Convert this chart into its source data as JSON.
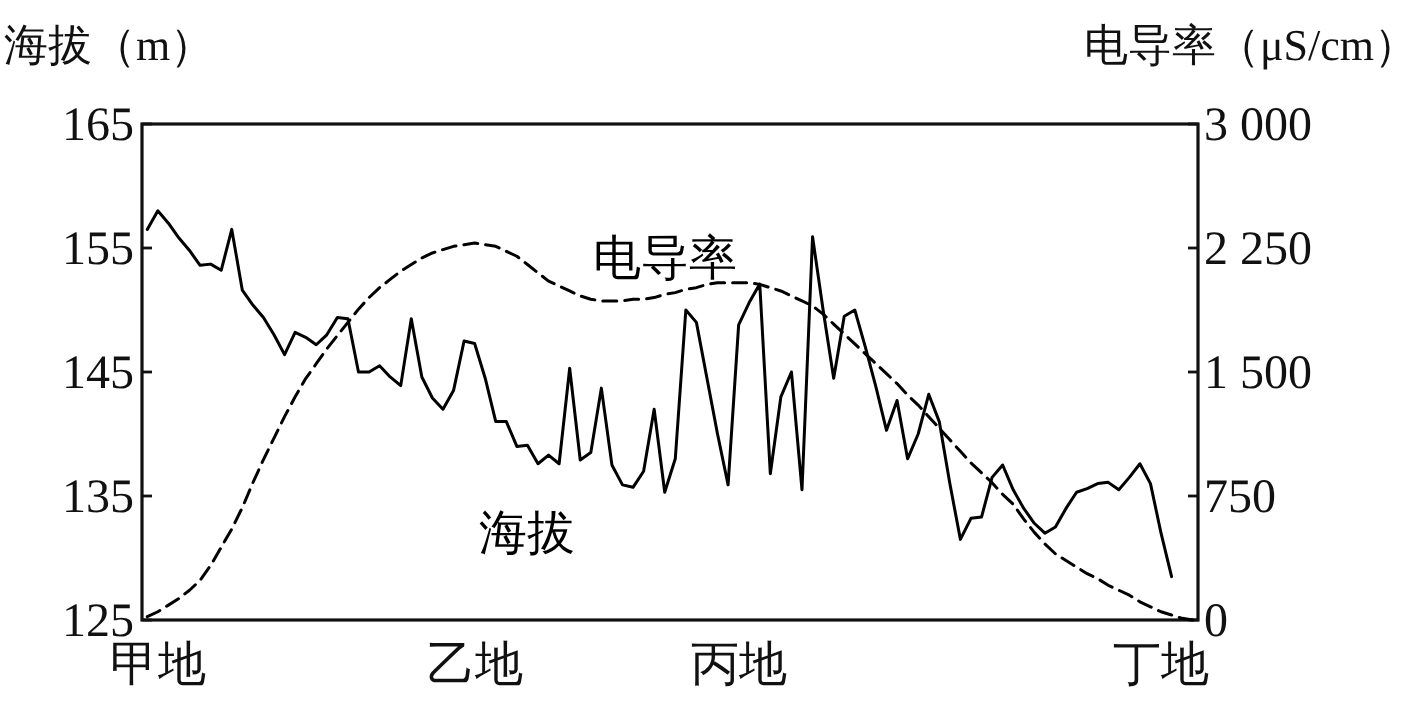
{
  "chart_data": {
    "type": "line",
    "ylabel": "海拔（m）",
    "y2label": "电导率（μS/cm）",
    "categories": [
      null,
      "甲地",
      null,
      null,
      null,
      null,
      null,
      null,
      null,
      null,
      null,
      null,
      null,
      null,
      null,
      null,
      null,
      null,
      null,
      null,
      null,
      null,
      null,
      null,
      null,
      null,
      null,
      null,
      null,
      null,
      null,
      "乙地",
      null,
      null,
      null,
      null,
      null,
      null,
      null,
      null,
      null,
      null,
      null,
      null,
      null,
      null,
      null,
      null,
      null,
      null,
      null,
      null,
      null,
      null,
      null,
      null,
      "丙地",
      null,
      null,
      null,
      null,
      null,
      null,
      null,
      null,
      null,
      null,
      null,
      null,
      null,
      null,
      null,
      null,
      null,
      null,
      null,
      null,
      null,
      null,
      null,
      null,
      null,
      null,
      null,
      null,
      null,
      null,
      null,
      null,
      null,
      null,
      null,
      null,
      null,
      null,
      null,
      "丁地",
      null,
      null,
      null
    ],
    "ylim": [
      125,
      165
    ],
    "yticks": [
      125,
      135,
      145,
      155,
      165
    ],
    "y2lim": [
      0,
      3000
    ],
    "y2ticks": [
      0,
      750,
      {
        "value": 1500,
        "label": "1 500"
      },
      {
        "value": 2250,
        "label": "2 250"
      },
      {
        "value": 3000,
        "label": "3 000"
      }
    ],
    "series": [
      {
        "name": "海拔",
        "color": "#000000",
        "line_style": "solid",
        "axis": "y",
        "values": [
          156.5,
          158.0,
          157.0,
          155.8,
          154.8,
          153.6,
          153.7,
          153.2,
          156.5,
          151.6,
          150.4,
          149.4,
          148.0,
          146.4,
          148.2,
          147.8,
          147.2,
          148.0,
          149.4,
          149.3,
          145.0,
          145.0,
          145.5,
          144.6,
          143.9,
          149.3,
          144.6,
          142.9,
          142.0,
          143.5,
          147.5,
          147.3,
          144.5,
          141.0,
          141.0,
          139.0,
          139.1,
          137.6,
          138.3,
          137.6,
          145.3,
          137.9,
          138.5,
          143.7,
          137.5,
          135.9,
          135.7,
          137.0,
          142.0,
          135.3,
          138.0,
          150.0,
          149.0,
          144.5,
          140.0,
          135.9,
          148.8,
          150.6,
          152.1,
          136.8,
          143.0,
          145.0,
          135.5,
          155.9,
          150.0,
          144.5,
          149.5,
          150.0,
          147.0,
          143.8,
          140.3,
          142.7,
          138.0,
          140.0,
          143.2,
          141.0,
          136.0,
          131.5,
          133.2,
          133.3,
          136.5,
          137.5,
          135.5,
          134.0,
          132.8,
          132.0,
          132.5,
          134.0,
          135.3,
          135.6,
          136.0,
          136.1,
          135.5,
          136.5,
          137.6,
          136.0,
          132.0,
          128.5,
          null,
          null
        ]
      },
      {
        "name": "电导率",
        "color": "#000000",
        "line_style": "dashed",
        "axis": "y2",
        "values": [
          20,
          50,
          90,
          130,
          180,
          240,
          330,
          440,
          550,
          680,
          830,
          970,
          1100,
          1230,
          1350,
          1460,
          1550,
          1640,
          1720,
          1800,
          1880,
          1950,
          2010,
          2060,
          2110,
          2150,
          2190,
          2220,
          2240,
          2260,
          2270,
          2280,
          2270,
          2260,
          2230,
          2200,
          2150,
          2100,
          2050,
          2020,
          1990,
          1960,
          1940,
          1930,
          1930,
          1930,
          1940,
          1940,
          1950,
          1970,
          1980,
          2000,
          2010,
          2030,
          2040,
          2040,
          2040,
          2040,
          2030,
          2010,
          1990,
          1960,
          1930,
          1900,
          1850,
          1790,
          1730,
          1670,
          1610,
          1550,
          1490,
          1430,
          1360,
          1300,
          1230,
          1160,
          1090,
          1020,
          950,
          890,
          830,
          760,
          700,
          610,
          530,
          460,
          400,
          360,
          320,
          280,
          250,
          210,
          180,
          150,
          110,
          80,
          50,
          30,
          10,
          0
        ]
      }
    ]
  }
}
